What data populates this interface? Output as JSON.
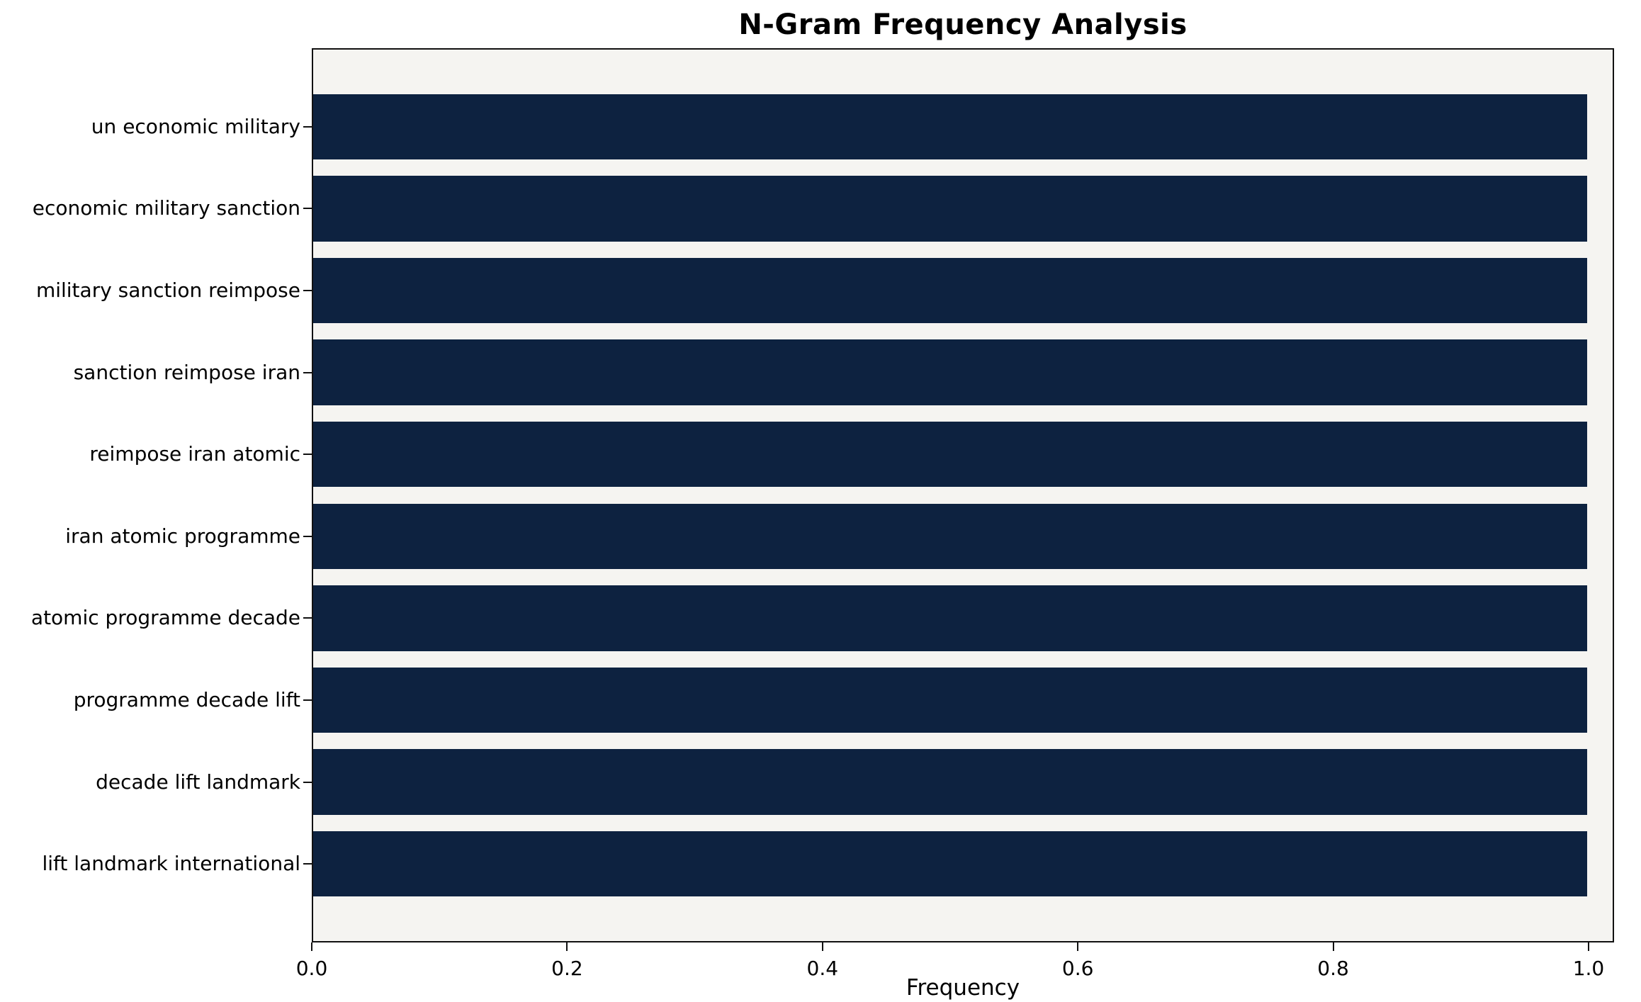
{
  "chart_data": {
    "type": "bar",
    "orientation": "horizontal",
    "title": "N-Gram Frequency Analysis",
    "xlabel": "Frequency",
    "ylabel": "",
    "categories": [
      "un economic military",
      "economic military sanction",
      "military sanction reimpose",
      "sanction reimpose iran",
      "reimpose iran atomic",
      "iran atomic programme",
      "atomic programme decade",
      "programme decade lift",
      "decade lift landmark",
      "lift landmark international"
    ],
    "values": [
      1.0,
      1.0,
      1.0,
      1.0,
      1.0,
      1.0,
      1.0,
      1.0,
      1.0,
      1.0
    ],
    "xticks": [
      0.0,
      0.2,
      0.4,
      0.6,
      0.8,
      1.0
    ],
    "xtick_labels": [
      "0.0",
      "0.2",
      "0.4",
      "0.6",
      "0.8",
      "1.0"
    ],
    "xlim": [
      0,
      1.02
    ],
    "grid": false,
    "legend": false,
    "colors": {
      "bar": "#0d2240",
      "plot_background": "#f5f4f1",
      "figure_background": "#ffffff",
      "spine": "#111111"
    }
  }
}
